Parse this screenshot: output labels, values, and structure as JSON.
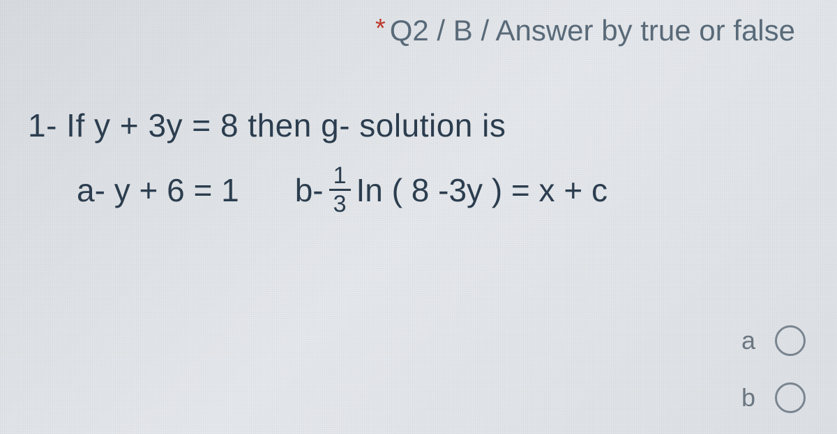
{
  "header": {
    "asterisk": "*",
    "title": "Q2 / B / Answer by true or false"
  },
  "question": {
    "line1_prefix": "1- If   y + 3y = 8  then  g- solution  is",
    "option_a_label": "a-",
    "option_a_expr": "y + 6 = 1",
    "option_b_label": "b-",
    "option_b_frac_num": "1",
    "option_b_frac_den": "3",
    "option_b_expr_after": "In ( 8 -3y ) = x + c"
  },
  "answers": {
    "options": [
      {
        "label": "a"
      },
      {
        "label": "b"
      }
    ]
  },
  "colors": {
    "asterisk": "#c0392b",
    "header_text": "#5a6b7a",
    "body_text": "#2c3e50",
    "radio_border": "#7a8590",
    "radio_label": "#6b7680",
    "background": "#e0e4e8"
  }
}
